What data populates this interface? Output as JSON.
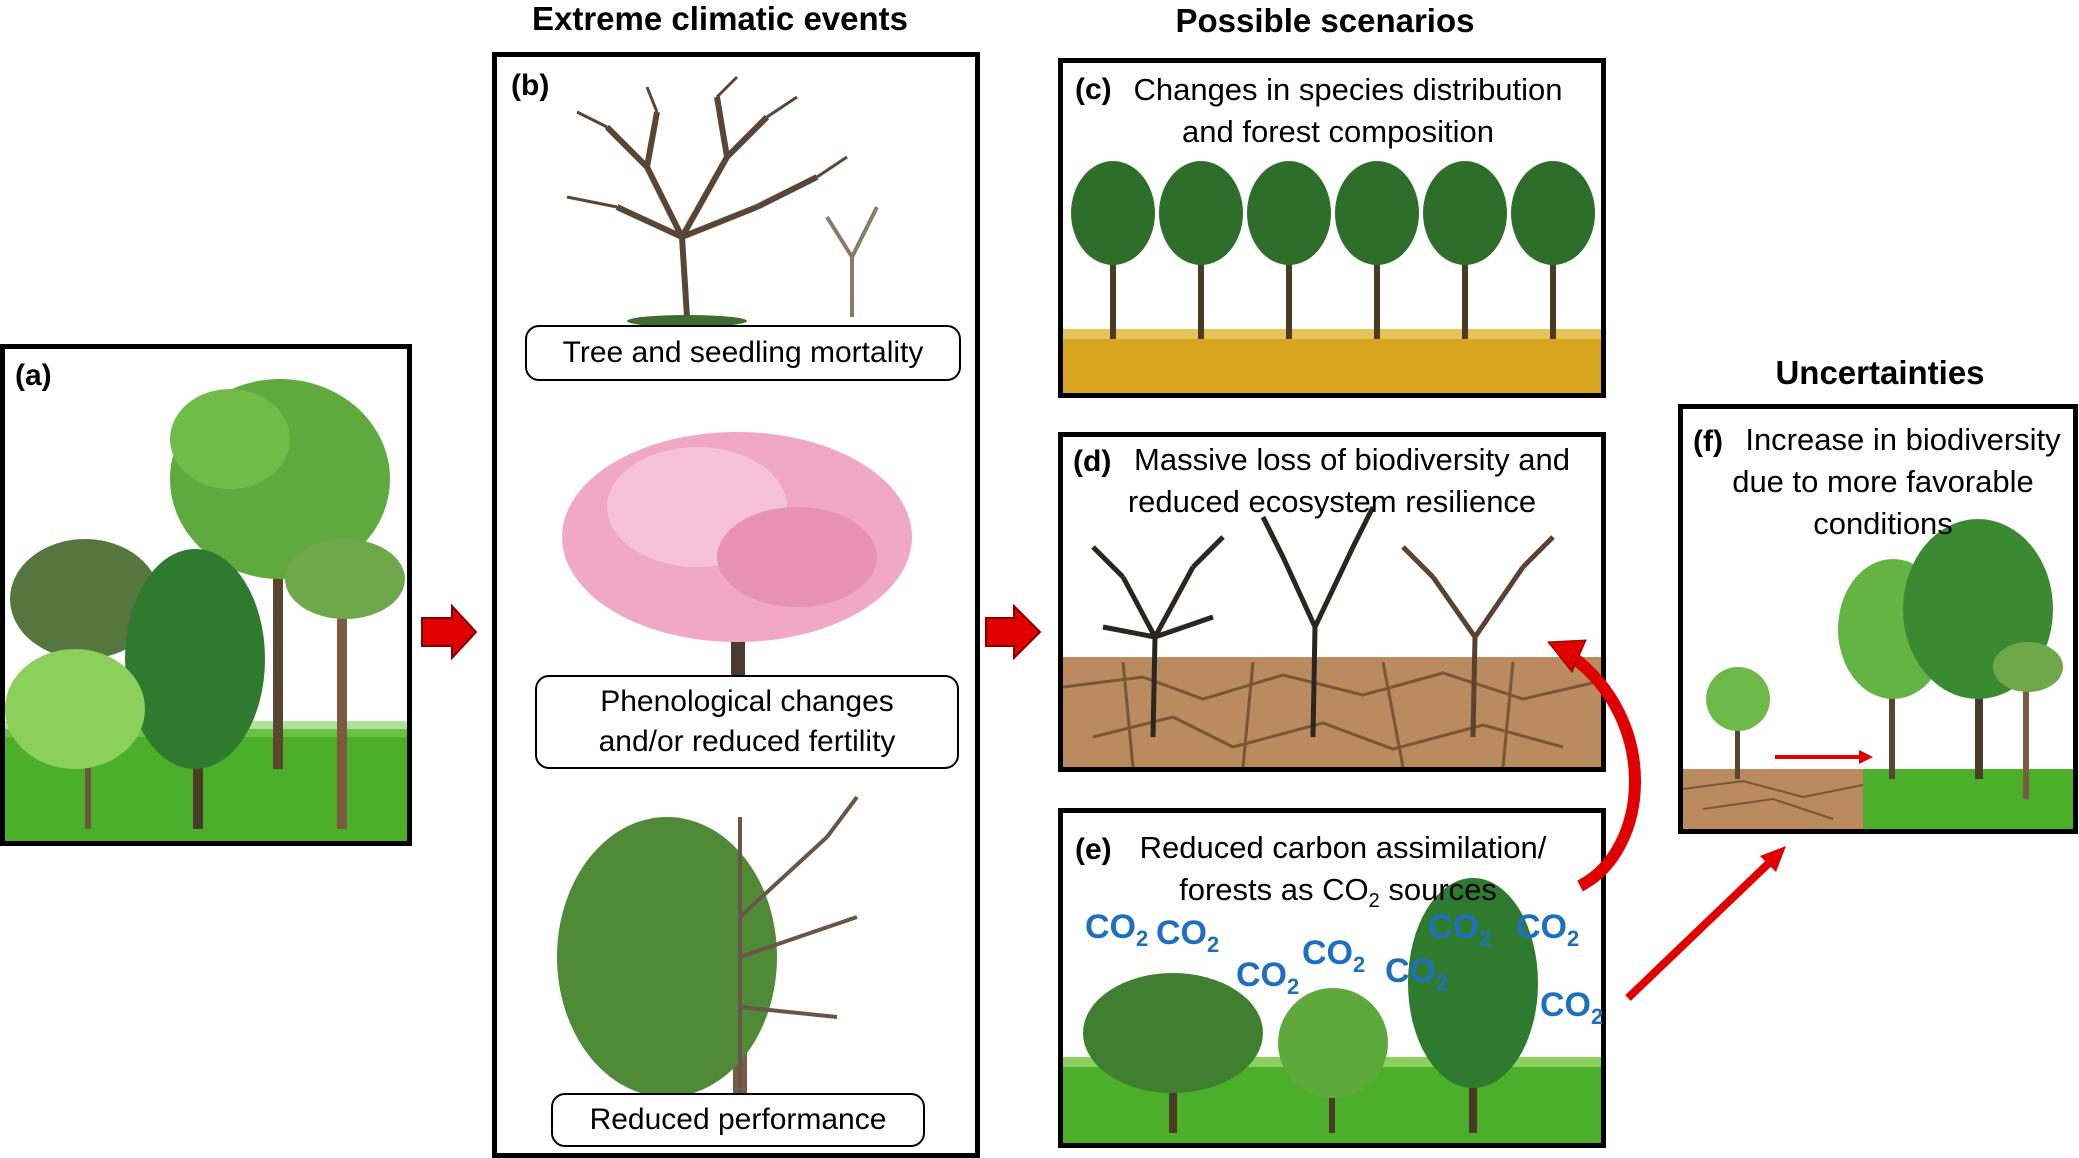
{
  "headings": {
    "extreme_events": "Extreme climatic events",
    "possible_scenarios": "Possible scenarios",
    "uncertainties": "Uncertainties"
  },
  "panel_a": {
    "label": "(a)"
  },
  "panel_b": {
    "label": "(b)",
    "caption_1": "Tree and seedling mortality",
    "caption_2_line1": "Phenological changes",
    "caption_2_line2": "and/or reduced fertility",
    "caption_3": "Reduced performance"
  },
  "panel_c": {
    "label": "(c)",
    "line1": "Changes in species distribution",
    "line2": "and forest composition"
  },
  "panel_d": {
    "label": "(d)",
    "line1": "Massive loss of biodiversity and",
    "line2": "reduced ecosystem resilience"
  },
  "panel_e": {
    "label": "(e)",
    "line1": "Reduced carbon assimilation/",
    "line2_prefix": "forests as CO",
    "line2_sub": "2",
    "line2_suffix": " sources"
  },
  "panel_f": {
    "label": "(f)",
    "line1": "Increase in biodiversity",
    "line2": "due to more favorable",
    "line3": "conditions"
  },
  "co2": {
    "text": "CO",
    "sub": "2"
  },
  "colors": {
    "arrow_red": "#e00000",
    "co2_blue": "#1f6fbf",
    "grass_green": "#4caf2a",
    "wheat_gold": "#d9a520",
    "cracked_earth": "#b98b5e"
  }
}
